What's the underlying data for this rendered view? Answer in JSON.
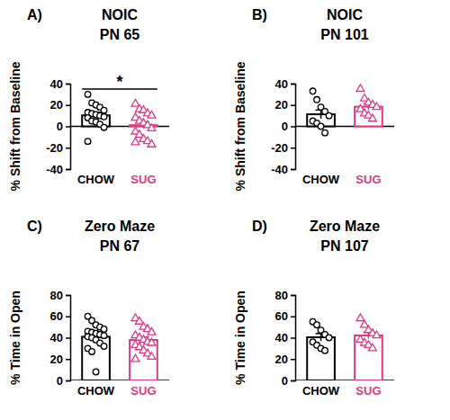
{
  "chart_data": [
    {
      "type": "bar",
      "panel": "A)",
      "title": "NOIC",
      "subtitle": "PN 65",
      "ylabel": "% Shift from Baseline",
      "categories": [
        "CHOW",
        "SUG"
      ],
      "values": [
        10.3,
        1.1
      ],
      "errors": [
        2.8,
        3.0
      ],
      "colors": [
        "#000000",
        "#dd3a84"
      ],
      "points": [
        {
          "marker": "circle",
          "values": [
            30,
            22,
            20,
            18,
            15,
            13,
            12,
            11,
            10,
            9,
            8,
            5,
            4,
            2,
            -1,
            -14
          ]
        },
        {
          "marker": "triangle",
          "values": [
            21,
            16,
            15,
            12,
            10,
            8,
            5,
            3,
            1,
            -2,
            -5,
            -8,
            -12,
            -14,
            -17,
            -15
          ]
        }
      ],
      "annotations": [
        "*"
      ],
      "ylim": [
        -40,
        40
      ],
      "yticks": [
        -40,
        -20,
        0,
        20,
        40
      ]
    },
    {
      "type": "bar",
      "panel": "B)",
      "title": "NOIC",
      "subtitle": "PN 101",
      "ylabel": "% Shift from Baseline",
      "categories": [
        "CHOW",
        "SUG"
      ],
      "values": [
        11.3,
        18.4
      ],
      "errors": [
        4.0,
        3.0
      ],
      "colors": [
        "#000000",
        "#dd3a84"
      ],
      "points": [
        {
          "marker": "circle",
          "values": [
            33,
            25,
            18,
            14,
            10,
            5,
            3,
            0,
            -6
          ]
        },
        {
          "marker": "triangle",
          "values": [
            35,
            26,
            22,
            20,
            18,
            16,
            12,
            10,
            7
          ]
        }
      ],
      "ylim": [
        -40,
        40
      ],
      "yticks": [
        -40,
        -20,
        0,
        20,
        40
      ]
    },
    {
      "type": "bar",
      "panel": "C)",
      "title": "Zero Maze",
      "subtitle": "PN 67",
      "ylabel": "% Time in Open",
      "categories": [
        "CHOW",
        "SUG"
      ],
      "values": [
        40.9,
        37.9
      ],
      "errors": [
        3.0,
        2.8
      ],
      "colors": [
        "#000000",
        "#dd3a84"
      ],
      "points": [
        {
          "marker": "circle",
          "values": [
            60,
            56,
            52,
            50,
            48,
            46,
            45,
            44,
            43,
            42,
            41,
            40,
            38,
            35,
            32,
            30,
            27,
            8
          ]
        },
        {
          "marker": "triangle",
          "values": [
            58,
            55,
            50,
            48,
            45,
            42,
            40,
            38,
            36,
            35,
            33,
            31,
            28,
            25,
            22,
            20
          ]
        }
      ],
      "ylim": [
        0,
        80
      ],
      "yticks": [
        0,
        20,
        40,
        60,
        80
      ]
    },
    {
      "type": "bar",
      "panel": "D)",
      "title": "Zero Maze",
      "subtitle": "PN 107",
      "ylabel": "% Time in Open",
      "categories": [
        "CHOW",
        "SUG"
      ],
      "values": [
        40.4,
        42.1
      ],
      "errors": [
        3.5,
        3.0
      ],
      "colors": [
        "#000000",
        "#dd3a84"
      ],
      "points": [
        {
          "marker": "circle",
          "values": [
            55,
            52,
            47,
            43,
            40,
            36,
            33,
            30,
            28
          ]
        },
        {
          "marker": "triangle",
          "values": [
            58,
            52,
            47,
            44,
            42,
            38,
            35,
            33,
            30
          ]
        }
      ],
      "ylim": [
        0,
        80
      ],
      "yticks": [
        0,
        20,
        40,
        60,
        80
      ]
    }
  ]
}
